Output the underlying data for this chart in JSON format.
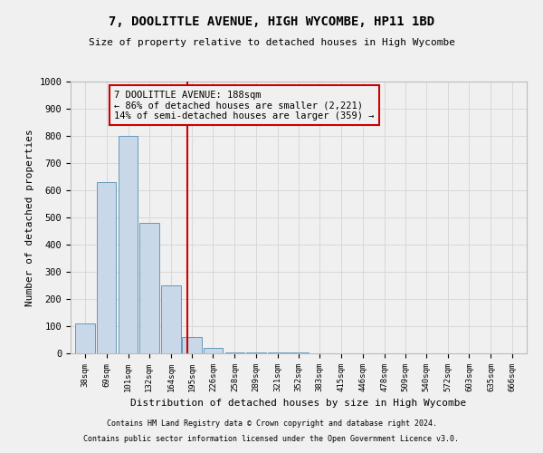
{
  "title1": "7, DOOLITTLE AVENUE, HIGH WYCOMBE, HP11 1BD",
  "title2": "Size of property relative to detached houses in High Wycombe",
  "xlabel": "Distribution of detached houses by size in High Wycombe",
  "ylabel": "Number of detached properties",
  "bins": [
    38,
    69,
    101,
    132,
    164,
    195,
    226,
    258,
    289,
    321,
    352,
    383,
    415,
    446,
    478,
    509,
    540,
    572,
    603,
    635,
    666
  ],
  "bar_heights": [
    110,
    630,
    800,
    480,
    250,
    60,
    20,
    5,
    5,
    3,
    2,
    1,
    1,
    0,
    0,
    0,
    0,
    0,
    0,
    0,
    0
  ],
  "property_size": 188,
  "ylim": [
    0,
    1000
  ],
  "bar_color": "#c8d8e8",
  "bar_edge_color": "#6699bb",
  "vline_color": "#cc0000",
  "annotation_text": "7 DOOLITTLE AVENUE: 188sqm\n← 86% of detached houses are smaller (2,221)\n14% of semi-detached houses are larger (359) →",
  "footnote1": "Contains HM Land Registry data © Crown copyright and database right 2024.",
  "footnote2": "Contains public sector information licensed under the Open Government Licence v3.0.",
  "background_color": "#f0f0f0",
  "grid_color": "#d8d8d8"
}
